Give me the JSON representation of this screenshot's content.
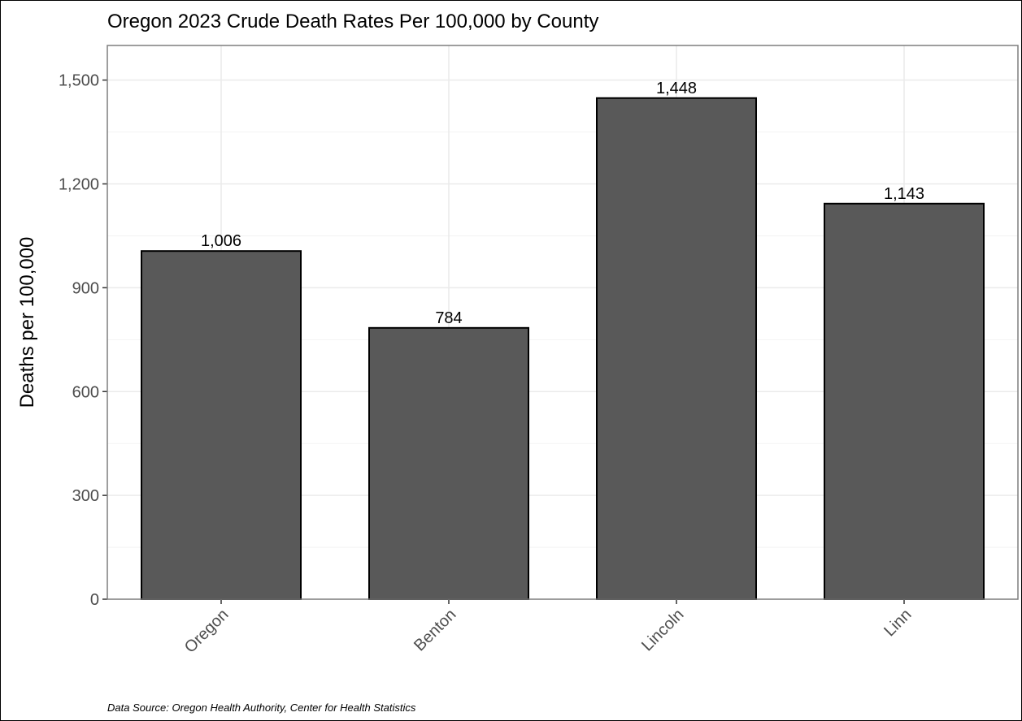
{
  "chart_data": {
    "type": "bar",
    "title": "Oregon 2023 Crude Death Rates Per 100,000 by County",
    "xlabel": "",
    "ylabel": "Deaths per 100,000",
    "caption": "Data Source: Oregon Health Authority, Center for Health Statistics",
    "categories": [
      "Oregon",
      "Benton",
      "Lincoln",
      "Linn"
    ],
    "values": [
      1006,
      784,
      1448,
      1143
    ],
    "value_labels": [
      "1,006",
      "784",
      "1,448",
      "1,143"
    ],
    "ylim": [
      0,
      1500
    ],
    "yticks": [
      0,
      300,
      600,
      900,
      1200,
      1500
    ],
    "ytick_labels": [
      "0",
      "300",
      "600",
      "900",
      "1,200",
      "1,500"
    ],
    "grid": true,
    "legend": "none",
    "colors": {
      "bar_fill": "#595959",
      "bar_stroke": "#000000",
      "grid": "#ebebeb",
      "panel_border": "#7f7f7f"
    }
  }
}
